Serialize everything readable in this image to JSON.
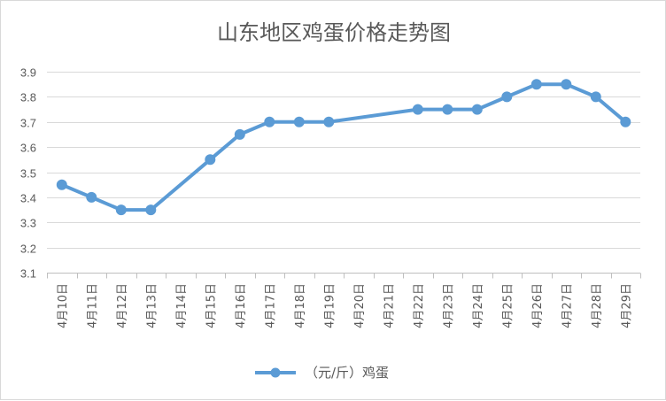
{
  "chart_data": {
    "type": "line",
    "title": "山东地区鸡蛋价格走势图",
    "categories": [
      "4月10日",
      "4月11日",
      "4月12日",
      "4月13日",
      "4月14日",
      "4月15日",
      "4月16日",
      "4月17日",
      "4月18日",
      "4月19日",
      "4月20日",
      "4月21日",
      "4月22日",
      "4月23日",
      "4月24日",
      "4月25日",
      "4月26日",
      "4月27日",
      "4月28日",
      "4月29日"
    ],
    "series": [
      {
        "name": "（元/斤）鸡蛋",
        "values": [
          3.45,
          3.4,
          3.35,
          3.35,
          null,
          3.55,
          3.65,
          3.7,
          3.7,
          3.7,
          null,
          null,
          3.75,
          3.75,
          3.75,
          3.8,
          3.85,
          3.85,
          3.8,
          3.7
        ],
        "color": "#5b9bd5"
      }
    ],
    "ylim": [
      3.1,
      3.9
    ],
    "yticks": [
      "3.1",
      "3.2",
      "3.3",
      "3.4",
      "3.5",
      "3.6",
      "3.7",
      "3.8",
      "3.9"
    ],
    "grid": true,
    "legend_position": "bottom",
    "gaps": "connected"
  }
}
